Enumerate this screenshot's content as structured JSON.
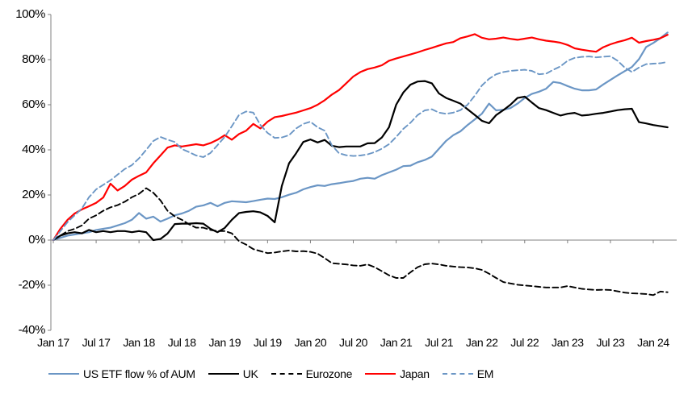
{
  "chart_data": {
    "type": "line",
    "x_start": "Jan 2017",
    "x_end": "Mar 2024",
    "x_unit": "month",
    "n_points": 87,
    "ylim": [
      -40,
      100
    ],
    "y_tick_step": 20,
    "grid": "zero-line-only",
    "legend_position": "bottom",
    "series": [
      {
        "name": "US ETF flow % of AUM",
        "color": "#6b96c5",
        "style": "solid",
        "values": [
          0,
          1,
          2,
          2.5,
          3,
          3.5,
          4.5,
          5,
          5.5,
          6.5,
          7.5,
          9,
          12,
          9.5,
          10.4,
          8.2,
          9.5,
          11,
          11.8,
          13,
          14.8,
          15.4,
          16.5,
          15,
          16.5,
          17.2,
          17,
          16.8,
          17.3,
          17.9,
          18.4,
          18.2,
          19,
          20.1,
          21,
          22.5,
          23.5,
          24.3,
          24,
          24.8,
          25.2,
          25.8,
          26.2,
          27.2,
          27.6,
          27.2,
          28.8,
          30,
          31.2,
          32.8,
          33,
          34.5,
          35.5,
          37,
          40.5,
          44,
          46.5,
          48.2,
          51,
          53.5,
          56,
          60.5,
          57.5,
          57.8,
          58.5,
          60.5,
          63,
          64.8,
          65.8,
          67.1,
          70.1,
          69.6,
          68.3,
          67.1,
          66.4,
          66.4,
          66.8,
          69,
          71,
          73,
          74.9,
          76.7,
          80.2,
          85.6,
          87.4,
          89.5,
          92
        ]
      },
      {
        "name": "UK",
        "color": "#000000",
        "style": "solid",
        "values": [
          0,
          2,
          3,
          3.5,
          3,
          4.5,
          3.5,
          4,
          3.5,
          4,
          4,
          3.5,
          4,
          3.5,
          0,
          0.5,
          2.9,
          7.1,
          7.3,
          7.3,
          7.5,
          7.3,
          5,
          3.5,
          5.4,
          9,
          12,
          12.5,
          12.8,
          12.3,
          10.7,
          7.9,
          24,
          34,
          38.5,
          43.5,
          44.6,
          43.3,
          44.4,
          41.8,
          41.2,
          41.5,
          41.5,
          41.5,
          42.9,
          43,
          45.5,
          50,
          60,
          65.4,
          68.9,
          70.3,
          70.5,
          69.5,
          65,
          63,
          61.8,
          60.5,
          58,
          55.5,
          52.9,
          51.8,
          55.4,
          57.6,
          60,
          63,
          63.6,
          61,
          58.5,
          57.6,
          56.4,
          55.2,
          56,
          56.4,
          55.2,
          55.5,
          56,
          56.4,
          57,
          57.6,
          58,
          58.2,
          52.3,
          51.7,
          51,
          50.5,
          50
        ]
      },
      {
        "name": "Eurozone",
        "color": "#000000",
        "style": "dashed",
        "values": [
          0,
          2,
          4,
          5,
          6.5,
          9.5,
          11,
          13,
          14.5,
          15.5,
          17,
          19,
          20.5,
          23,
          21,
          17.6,
          13,
          10.5,
          9,
          7,
          5.5,
          5.5,
          4.5,
          4,
          4,
          3,
          -0.5,
          -2,
          -4,
          -4.9,
          -5.8,
          -5.5,
          -5,
          -4.6,
          -5,
          -4.9,
          -5.2,
          -6,
          -8,
          -10.2,
          -10.5,
          -10.8,
          -11.2,
          -11.4,
          -10.8,
          -12,
          -13.8,
          -15.6,
          -16.8,
          -16.8,
          -14.3,
          -12,
          -10.7,
          -10.4,
          -10.8,
          -11.4,
          -11.7,
          -12,
          -12.1,
          -12.5,
          -13.2,
          -14.9,
          -16.8,
          -18.6,
          -19.2,
          -19.8,
          -20.1,
          -20.4,
          -20.7,
          -21,
          -21,
          -21,
          -20.4,
          -21,
          -21.6,
          -21.9,
          -22.1,
          -22,
          -22.1,
          -22.7,
          -23.3,
          -23.6,
          -23.7,
          -23.9,
          -24.4,
          -22.8,
          -23.1
        ]
      },
      {
        "name": "Japan",
        "color": "#ff0000",
        "style": "solid",
        "values": [
          0,
          5,
          9,
          11.8,
          13.6,
          15,
          16.5,
          18.9,
          25,
          22,
          24,
          26.8,
          28.5,
          30,
          34,
          37.5,
          41,
          42,
          41.5,
          42,
          42.5,
          42,
          43,
          44.5,
          46.5,
          44.5,
          47,
          48.5,
          51.5,
          49.5,
          52.5,
          54.5,
          55,
          55.8,
          56.5,
          57.5,
          58.5,
          60,
          62,
          64.5,
          66.5,
          69.5,
          72.5,
          74.5,
          75.8,
          76.5,
          77.5,
          79.5,
          80.5,
          81.4,
          82.3,
          83.2,
          84.3,
          85.2,
          86.2,
          87.2,
          87.8,
          89.5,
          90.3,
          91.3,
          89.7,
          89,
          89.3,
          89.8,
          89.2,
          88.8,
          89.3,
          89.8,
          89,
          88.4,
          88,
          87.5,
          86.5,
          85,
          84.4,
          83.9,
          83.5,
          85.5,
          86.8,
          87.8,
          88.6,
          89.7,
          87.5,
          88.2,
          88.8,
          89.5,
          91
        ]
      },
      {
        "name": "EM",
        "color": "#6b96c5",
        "style": "dashed",
        "values": [
          0,
          4,
          8,
          11,
          14,
          19,
          22.5,
          24.5,
          26.5,
          29,
          31.5,
          33.2,
          36.2,
          40,
          43.9,
          45.7,
          44.5,
          43.5,
          40.4,
          39,
          37.5,
          36.8,
          38.6,
          42.1,
          45.7,
          50.5,
          55.5,
          57,
          56.5,
          51,
          47.5,
          45.3,
          45.5,
          46.5,
          49.5,
          51.5,
          52.5,
          50,
          48.5,
          42,
          38.5,
          37.6,
          37.3,
          37.5,
          38,
          39,
          40.5,
          42.5,
          45.7,
          49.3,
          52,
          55.4,
          57.5,
          58,
          56.5,
          56,
          56.5,
          57.6,
          60,
          64,
          68.5,
          71.5,
          73.5,
          74.5,
          75,
          75.3,
          75.5,
          75,
          73.5,
          73.8,
          75.5,
          77,
          79.5,
          80.8,
          81.2,
          81.4,
          81,
          81.3,
          81.5,
          79.5,
          76.5,
          74.5,
          76.5,
          78,
          78.2,
          78.4,
          79
        ]
      }
    ]
  },
  "axes": {
    "y": {
      "ticks": [
        {
          "value": 100,
          "label": "100%"
        },
        {
          "value": 80,
          "label": "80%"
        },
        {
          "value": 60,
          "label": "60%"
        },
        {
          "value": 40,
          "label": "40%"
        },
        {
          "value": 20,
          "label": "20%"
        },
        {
          "value": 0,
          "label": "0%"
        },
        {
          "value": -20,
          "label": "-20%"
        },
        {
          "value": -40,
          "label": "-40%"
        }
      ]
    },
    "x": {
      "labels": [
        "Jan 17",
        "Jul 17",
        "Jan 18",
        "Jul 18",
        "Jan 19",
        "Jul 19",
        "Jan 20",
        "Jul 20",
        "Jan 21",
        "Jul 21",
        "Jan 22",
        "Jul 22",
        "Jan 23",
        "Jul 23",
        "Jan 24"
      ]
    }
  },
  "legend": {
    "items": [
      {
        "label": "US ETF flow % of AUM",
        "color": "#6b96c5",
        "style": "solid"
      },
      {
        "label": "UK",
        "color": "#000000",
        "style": "solid"
      },
      {
        "label": "Eurozone",
        "color": "#000000",
        "style": "dashed"
      },
      {
        "label": "Japan",
        "color": "#ff0000",
        "style": "solid"
      },
      {
        "label": "EM",
        "color": "#6b96c5",
        "style": "dashed"
      }
    ]
  },
  "colors": {
    "us_blue": "#6b96c5",
    "japan_red": "#ff0000",
    "black": "#000000",
    "axis_line": "#808080",
    "background": "#ffffff"
  }
}
